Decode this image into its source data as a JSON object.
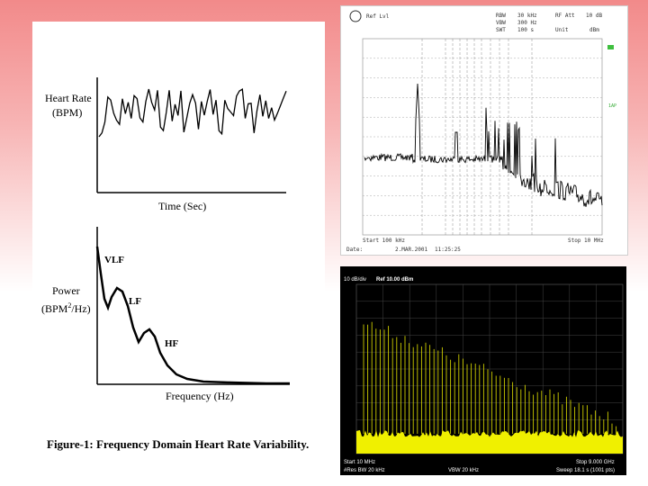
{
  "hrv_figure": {
    "top_plot": {
      "ylabel_line1": "Heart Rate",
      "ylabel_line2": "(BPM)",
      "xlabel": "Time (Sec)"
    },
    "bottom_plot": {
      "ylabel_line1": "Power",
      "ylabel_line2_pre": "(BPM",
      "ylabel_sup": "2",
      "ylabel_line2_post": "/Hz)",
      "xlabel": "Frequency (Hz)",
      "labels": {
        "vlf": "VLF",
        "lf": "LF",
        "hf": "HF"
      }
    },
    "caption": "Figure-1: Frequency Domain Heart Rate Variability."
  },
  "analyzer_top": {
    "header": {
      "ref_lvl": "Ref Lvl",
      "rbw_label": "RBW",
      "rbw_value": "30 kHz",
      "vbw_label": "VBW",
      "vbw_value": "300 Hz",
      "swt_label": "SWT",
      "swt_value": "100 s",
      "rf_att": "RF Att",
      "unit_label": "Unit",
      "att_value": "10 dB",
      "unit_value": "dBm"
    },
    "side_marker": "1AP",
    "start": "Start 100 kHz",
    "stop": "Stop 10 MHz",
    "date_label": "Date:",
    "date_value": "2.MAR.2001",
    "time_value": "11:25:25"
  },
  "analyzer_bottom": {
    "scale": "10 dB/div",
    "ref": "Ref 10.00 dBm",
    "start": "Start 10 MHz",
    "stop": "Stop 9.000 GHz",
    "res_bw": "#Res BW 20 kHz",
    "vbw": "VBW 20 kHz",
    "sweep": "Sweep  18.1 s (1001 pts)",
    "trace_color": "#f0f000"
  }
}
